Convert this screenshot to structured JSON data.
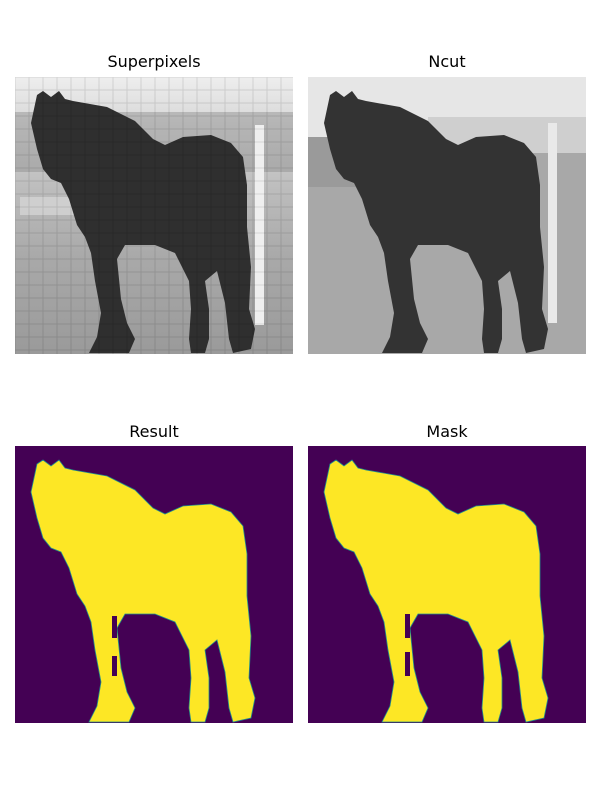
{
  "figure": {
    "panels": [
      {
        "title": "Superpixels"
      },
      {
        "title": "Ncut"
      },
      {
        "title": "Result"
      },
      {
        "title": "Mask"
      }
    ]
  },
  "colors": {
    "mask_background": "#440154",
    "mask_foreground": "#fde725",
    "mask_edge": "#21918c",
    "horse_superpixel": "#2e2e2e",
    "horse_ncut": "#333333",
    "sky": "#e8e8e8",
    "ground": "#a6a6a6"
  }
}
